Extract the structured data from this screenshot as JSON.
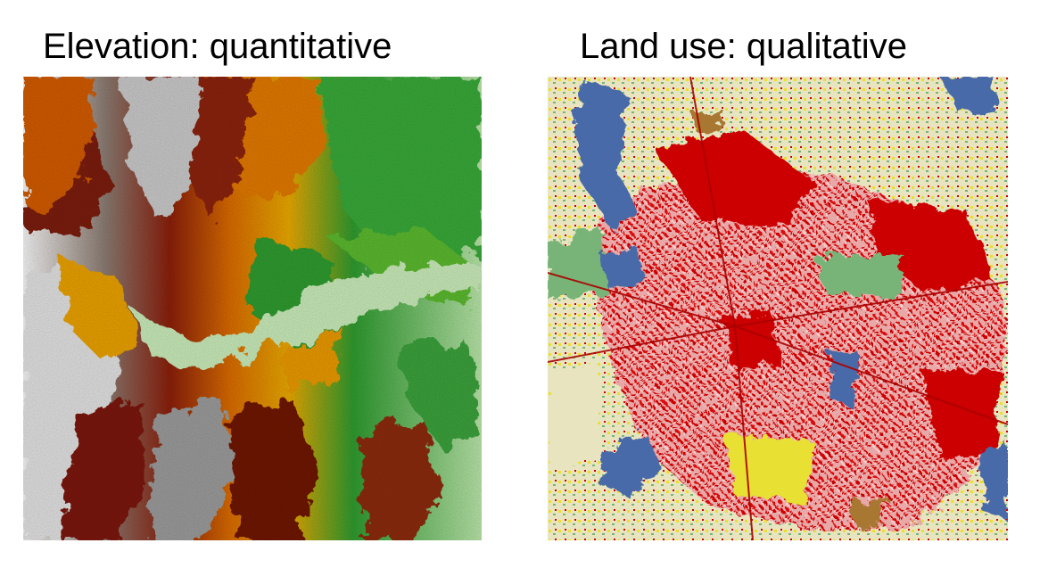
{
  "titles": {
    "left": "Elevation: quantitative",
    "right": "Land use: qualitative"
  },
  "colors": {
    "elevation_ramp": [
      "#ffffff",
      "#9a9a9a",
      "#7a1e08",
      "#c84a00",
      "#e88a00",
      "#f0c000",
      "#2e9a2e",
      "#5ab82e",
      "#c8eab8"
    ],
    "land_use": {
      "water": "#4a6aa8",
      "urban_high": "#cc0000",
      "urban_low": "#e8a0a0",
      "grass": "#e8e4c0",
      "crop": "#e8e030",
      "forest": "#78b478",
      "barren": "#a87830"
    }
  }
}
